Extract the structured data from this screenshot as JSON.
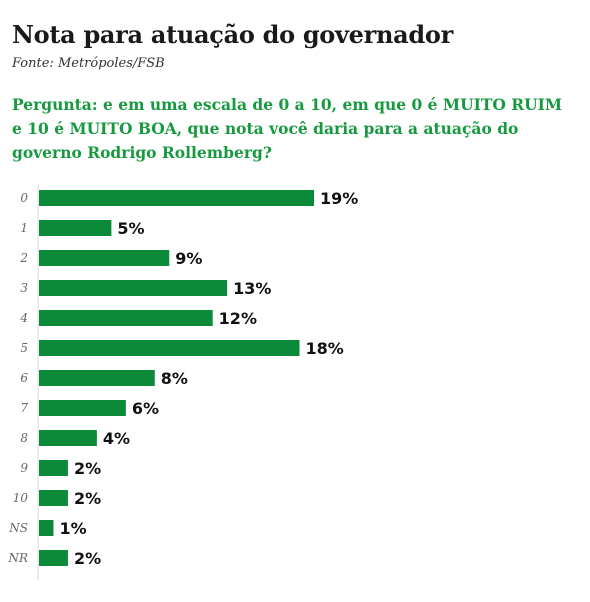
{
  "header": {
    "title": "Nota para atuação do governador",
    "source": "Fonte: Metrópoles/FSB",
    "question": "Pergunta: e em uma escala de 0 a 10, em que 0 é MUITO RUIM e 10 é MUITO BOA, que nota você daria para a atuação do governo Rodrigo Rollemberg?"
  },
  "colors": {
    "bar": "#0b8a3a",
    "question": "#179a3f",
    "axis": "#d9d9d9"
  },
  "chart_data": {
    "type": "bar",
    "orientation": "horizontal",
    "categories": [
      "0",
      "1",
      "2",
      "3",
      "4",
      "5",
      "6",
      "7",
      "8",
      "9",
      "10",
      "NS",
      "NR"
    ],
    "values": [
      19,
      5,
      9,
      13,
      12,
      18,
      8,
      6,
      4,
      2,
      2,
      1,
      2
    ],
    "value_labels": [
      "19%",
      "5%",
      "9%",
      "13%",
      "12%",
      "18%",
      "8%",
      "6%",
      "4%",
      "2%",
      "2%",
      "1%",
      "2%"
    ],
    "unit": "%",
    "xlim": [
      0,
      19
    ],
    "grid": false,
    "legend": "none"
  }
}
